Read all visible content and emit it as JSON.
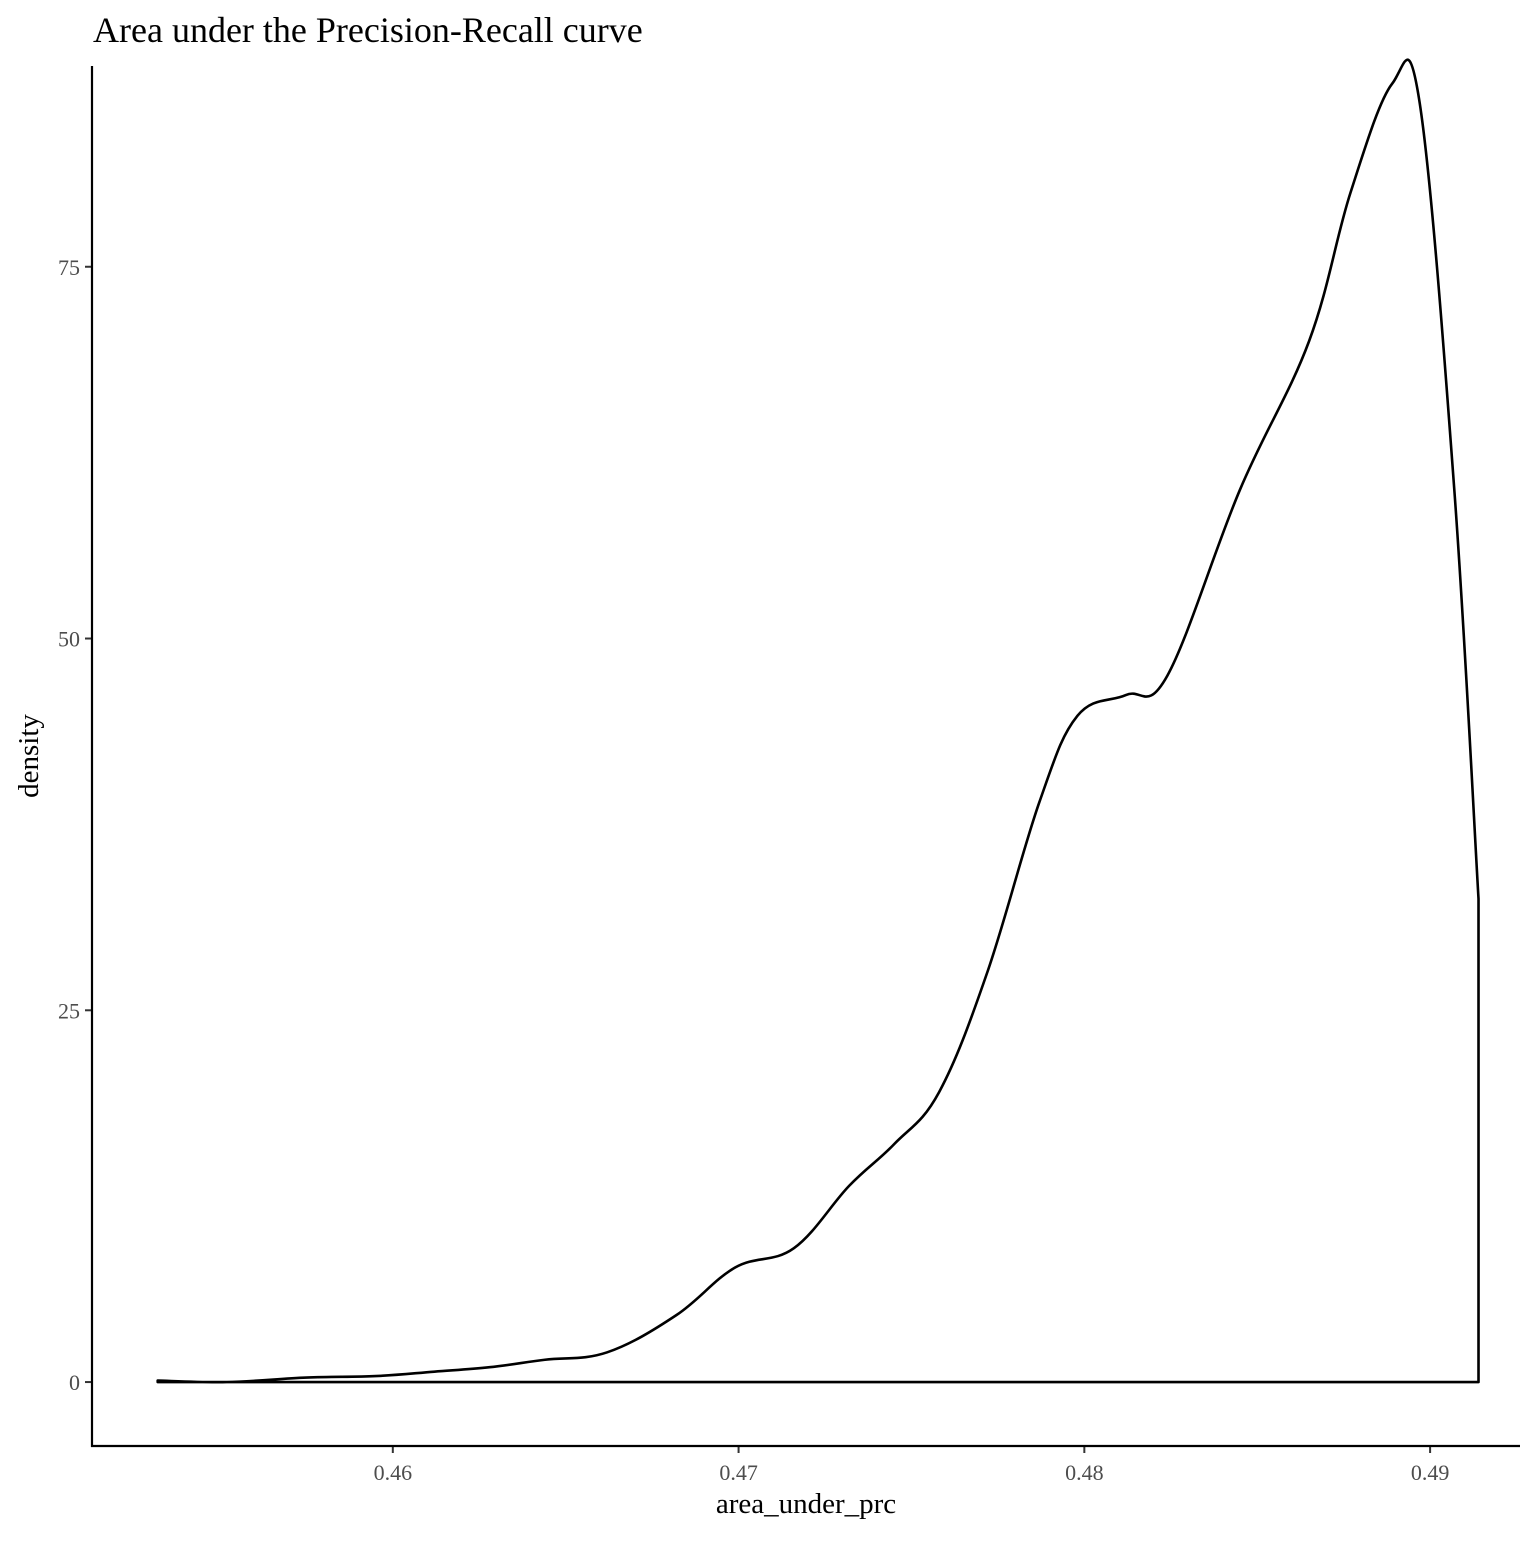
{
  "chart_data": {
    "type": "area",
    "title": "Area under the Precision-Recall curve",
    "xlabel": "area_under_prc",
    "ylabel": "density",
    "xlim": [
      0.4513,
      0.4926
    ],
    "ylim": [
      -4.3,
      88.5
    ],
    "x_ticks": [
      {
        "value": 0.46,
        "label": "0.46"
      },
      {
        "value": 0.47,
        "label": "0.47"
      },
      {
        "value": 0.48,
        "label": "0.48"
      },
      {
        "value": 0.49,
        "label": "0.49"
      }
    ],
    "y_ticks": [
      {
        "value": 0,
        "label": "0"
      },
      {
        "value": 25,
        "label": "25"
      },
      {
        "value": 50,
        "label": "50"
      },
      {
        "value": 75,
        "label": "75"
      }
    ],
    "grid": false,
    "legend": "none",
    "line_color": "#000000",
    "fill": "none",
    "series": [
      {
        "x": [
          0.4532,
          0.4552,
          0.4575,
          0.4595,
          0.4612,
          0.4628,
          0.4644,
          0.4662,
          0.4682,
          0.4699,
          0.4716,
          0.4732,
          0.4745,
          0.4758,
          0.4772,
          0.4787,
          0.4798,
          0.4812,
          0.4824,
          0.4845,
          0.4865,
          0.4877,
          0.4889,
          0.4897,
          0.4907,
          0.4914,
          0.4914,
          0.4532
        ],
        "y": [
          0.1,
          0.0,
          0.3,
          0.4,
          0.7,
          1.0,
          1.5,
          2.0,
          4.5,
          7.7,
          9.0,
          13.2,
          16.0,
          19.5,
          27.6,
          39.0,
          44.8,
          46.2,
          47.5,
          60.0,
          70.0,
          80.0,
          87.3,
          86.0,
          60.0,
          32.5,
          0.0,
          0.0
        ]
      }
    ]
  }
}
